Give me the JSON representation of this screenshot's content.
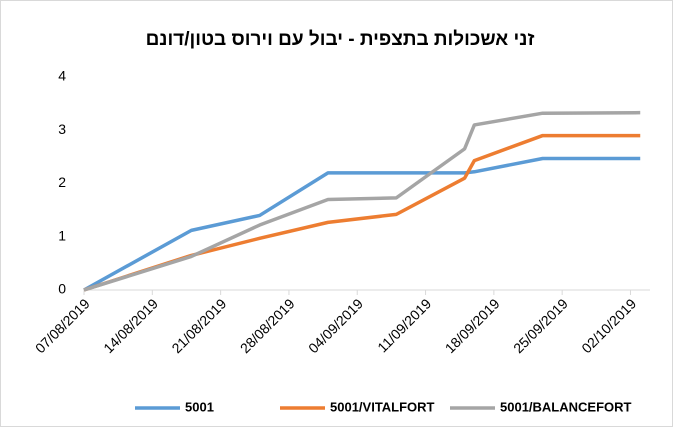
{
  "chart_data": {
    "type": "line",
    "title": "זני אשכולות בתצפית - יבול עם וירוס בטון/דונם",
    "x": [
      "07/08/2019",
      "18/08/2019",
      "25/08/2019",
      "01/09/2019",
      "08/09/2019",
      "15/09/2019",
      "16/09/2019",
      "23/09/2019",
      "03/10/2019"
    ],
    "series": [
      {
        "name": "5001",
        "color": "#5b9bd5",
        "values": [
          0,
          1.12,
          1.4,
          2.2,
          2.2,
          2.2,
          2.22,
          2.47,
          2.47
        ]
      },
      {
        "name": "5001/VITALFORT",
        "color": "#ed7d31",
        "values": [
          0,
          0.65,
          0.97,
          1.27,
          1.42,
          2.1,
          2.43,
          2.9,
          2.9
        ]
      },
      {
        "name": "5001/BALANCEFORT",
        "color": "#a5a5a5",
        "values": [
          0,
          0.63,
          1.22,
          1.7,
          1.73,
          2.65,
          3.1,
          3.32,
          3.33
        ]
      }
    ],
    "xlim": [
      "07/08/2019",
      "04/10/2019"
    ],
    "xticks": [
      "07/08/2019",
      "14/08/2019",
      "21/08/2019",
      "28/08/2019",
      "04/09/2019",
      "11/09/2019",
      "18/09/2019",
      "25/09/2019",
      "02/10/2019"
    ],
    "ylim": [
      0,
      4
    ],
    "yticks": [
      0,
      1,
      2,
      3,
      4
    ],
    "legend": "bottom"
  }
}
